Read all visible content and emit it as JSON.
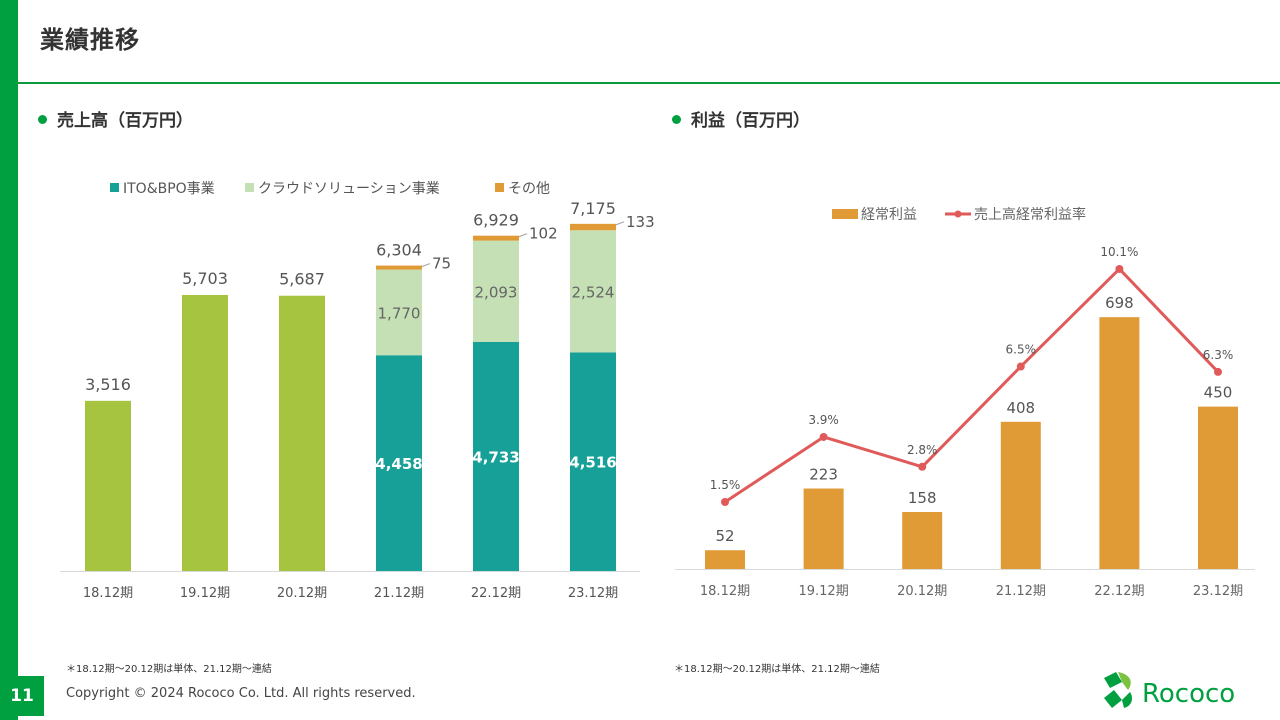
{
  "page": {
    "title": "業績推移",
    "page_number": "11",
    "copyright": "Copyright © 2024 Rococo Co. Ltd. All rights reserved.",
    "note_left": "＊18.12期〜20.12期は単体、21.12期〜連結",
    "note_right": "＊18.12期〜20.12期は単体、21.12期〜連結",
    "logo_text": "Rococo"
  },
  "colors": {
    "brand_green": "#00a040",
    "single_green": "#a6c43f",
    "ito_teal": "#17a098",
    "cloud_light": "#c5e0b4",
    "other_orange": "#e09a36",
    "profit_orange": "#e09a36",
    "ratio_red": "#e05a5a"
  },
  "chart_data": [
    {
      "type": "bar",
      "section_title": "売上高（百万円）",
      "categories": [
        "18.12期",
        "19.12期",
        "20.12期",
        "21.12期",
        "22.12期",
        "23.12期"
      ],
      "single_totals": [
        3516,
        5703,
        5687,
        null,
        null,
        null
      ],
      "series": [
        {
          "name": "ITO&BPO事業",
          "values": [
            null,
            null,
            null,
            4458,
            4733,
            4516
          ]
        },
        {
          "name": "クラウドソリューション事業",
          "values": [
            null,
            null,
            null,
            1770,
            2093,
            2524
          ]
        },
        {
          "name": "その他",
          "values": [
            null,
            null,
            null,
            75,
            102,
            133
          ]
        }
      ],
      "totals": [
        3516,
        5703,
        5687,
        6304,
        6929,
        7175
      ],
      "total_labels": [
        "3,516",
        "5,703",
        "5,687",
        "6,304",
        "6,929",
        "7,175"
      ],
      "segment_labels": {
        "ito": [
          "",
          "",
          "",
          "4,458",
          "4,733",
          "4,516"
        ],
        "cloud": [
          "",
          "",
          "",
          "1,770",
          "2,093",
          "2,524"
        ],
        "other": [
          "",
          "",
          "",
          "75",
          "102",
          "133"
        ]
      },
      "legend_position": "top",
      "grid": false
    },
    {
      "type": "bar",
      "section_title": "利益（百万円）",
      "categories": [
        "18.12期",
        "19.12期",
        "20.12期",
        "21.12期",
        "22.12期",
        "23.12期"
      ],
      "series": [
        {
          "name": "経常利益",
          "type": "bar",
          "values": [
            52,
            223,
            158,
            408,
            698,
            450
          ],
          "labels": [
            "52",
            "223",
            "158",
            "408",
            "698",
            "450"
          ]
        },
        {
          "name": "売上高経常利益率",
          "type": "line",
          "values": [
            1.5,
            3.9,
            2.8,
            6.5,
            10.1,
            6.3
          ],
          "labels": [
            "1.5%",
            "3.9%",
            "2.8%",
            "6.5%",
            "10.1%",
            "6.3%"
          ]
        }
      ],
      "legend_position": "top",
      "grid": false
    }
  ]
}
